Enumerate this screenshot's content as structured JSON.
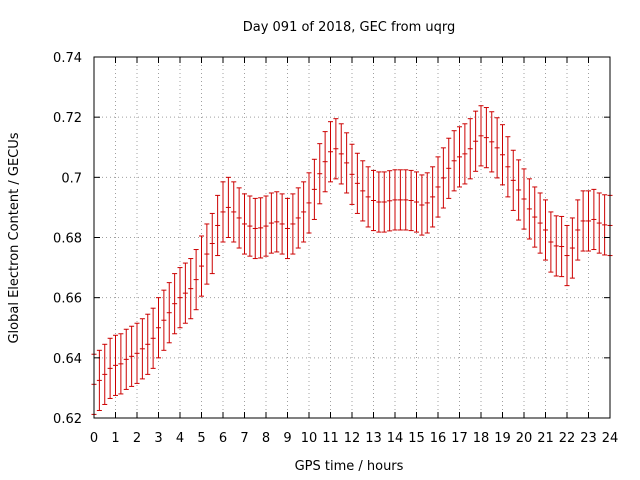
{
  "chart_data": {
    "type": "line",
    "title": "Day 091 of 2018, GEC from uqrg",
    "xlabel": "GPS time / hours",
    "ylabel": "Global Electron Content / GECUs",
    "xlim": [
      0,
      24
    ],
    "ylim": [
      0.62,
      0.74
    ],
    "xticks": [
      0,
      1,
      2,
      3,
      4,
      5,
      6,
      7,
      8,
      9,
      10,
      11,
      12,
      13,
      14,
      15,
      16,
      17,
      18,
      19,
      20,
      21,
      22,
      23,
      24
    ],
    "yticks": [
      0.62,
      0.64,
      0.66,
      0.68,
      0.7,
      0.72,
      0.74
    ],
    "ytick_labels": [
      "0.62",
      "0.64",
      "0.66",
      "0.68",
      "0.7",
      "0.72",
      "0.74"
    ],
    "grid": true,
    "legend": "none",
    "series_color": "#cc0000",
    "grid_color": "#a0a0a0",
    "series": [
      {
        "x": [
          0,
          0.25,
          0.5,
          0.75,
          1,
          1.25,
          1.5,
          1.75,
          2,
          2.25,
          2.5,
          2.75,
          3,
          3.25,
          3.5,
          3.75,
          4,
          4.25,
          4.5,
          4.75,
          5,
          5.25,
          5.5,
          5.75,
          6,
          6.25,
          6.5,
          6.75,
          7,
          7.25,
          7.5,
          7.75,
          8,
          8.25,
          8.5,
          8.75,
          9,
          9.25,
          9.5,
          9.75,
          10,
          10.25,
          10.5,
          10.75,
          11,
          11.25,
          11.5,
          11.75,
          12,
          12.25,
          12.5,
          12.75,
          13,
          13.25,
          13.5,
          13.75,
          14,
          14.25,
          14.5,
          14.75,
          15,
          15.25,
          15.5,
          15.75,
          16,
          16.25,
          16.5,
          16.75,
          17,
          17.25,
          17.5,
          17.75,
          18,
          18.25,
          18.5,
          18.75,
          19,
          19.25,
          19.5,
          19.75,
          20,
          20.25,
          20.5,
          20.75,
          21,
          21.25,
          21.5,
          21.75,
          22,
          22.25,
          22.5,
          22.75,
          23,
          23.25,
          23.5,
          23.75,
          24
        ],
        "y": [
          0.6312,
          0.6325,
          0.6345,
          0.6365,
          0.6375,
          0.638,
          0.6395,
          0.6405,
          0.6415,
          0.643,
          0.6445,
          0.6465,
          0.65,
          0.6525,
          0.655,
          0.658,
          0.66,
          0.6615,
          0.663,
          0.666,
          0.6705,
          0.6745,
          0.678,
          0.684,
          0.6885,
          0.69,
          0.6885,
          0.6865,
          0.6845,
          0.6838,
          0.683,
          0.6832,
          0.6838,
          0.6848,
          0.6852,
          0.6845,
          0.683,
          0.6845,
          0.6865,
          0.6885,
          0.6915,
          0.696,
          0.7012,
          0.7052,
          0.7085,
          0.7095,
          0.7078,
          0.7048,
          0.701,
          0.698,
          0.6955,
          0.6935,
          0.6923,
          0.6918,
          0.6918,
          0.6922,
          0.6925,
          0.6925,
          0.6925,
          0.6923,
          0.6918,
          0.6908,
          0.6915,
          0.6935,
          0.6968,
          0.6998,
          0.703,
          0.7055,
          0.7068,
          0.7078,
          0.7095,
          0.712,
          0.7138,
          0.7132,
          0.7118,
          0.7098,
          0.7075,
          0.7035,
          0.699,
          0.6958,
          0.6928,
          0.6895,
          0.6868,
          0.6848,
          0.6825,
          0.6785,
          0.6772,
          0.677,
          0.674,
          0.6765,
          0.6825,
          0.6855,
          0.6855,
          0.686,
          0.6848,
          0.6842,
          0.684
        ],
        "err": [
          0.01,
          0.01,
          0.01,
          0.01,
          0.01,
          0.01,
          0.01,
          0.01,
          0.01,
          0.01,
          0.01,
          0.01,
          0.01,
          0.01,
          0.01,
          0.01,
          0.01,
          0.01,
          0.01,
          0.01,
          0.01,
          0.01,
          0.01,
          0.01,
          0.01,
          0.01,
          0.01,
          0.01,
          0.01,
          0.01,
          0.01,
          0.01,
          0.01,
          0.01,
          0.01,
          0.01,
          0.01,
          0.01,
          0.01,
          0.01,
          0.01,
          0.01,
          0.01,
          0.01,
          0.01,
          0.01,
          0.01,
          0.01,
          0.01,
          0.01,
          0.01,
          0.01,
          0.01,
          0.01,
          0.01,
          0.01,
          0.01,
          0.01,
          0.01,
          0.01,
          0.01,
          0.01,
          0.01,
          0.01,
          0.01,
          0.01,
          0.01,
          0.01,
          0.01,
          0.01,
          0.01,
          0.01,
          0.01,
          0.01,
          0.01,
          0.01,
          0.01,
          0.01,
          0.01,
          0.01,
          0.01,
          0.01,
          0.01,
          0.01,
          0.01,
          0.01,
          0.01,
          0.01,
          0.01,
          0.01,
          0.01,
          0.01,
          0.01,
          0.01,
          0.01,
          0.01,
          0.01
        ]
      }
    ]
  }
}
